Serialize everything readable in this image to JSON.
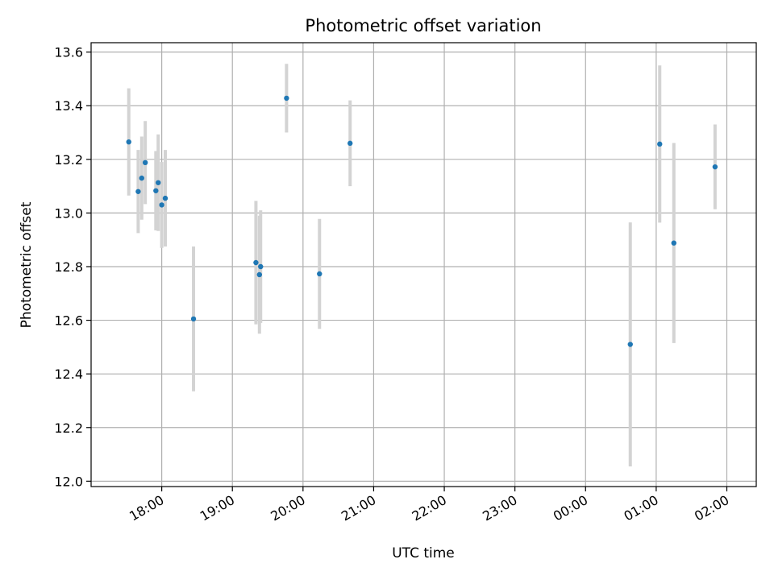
{
  "chart_data": {
    "type": "scatter",
    "title": "Photometric offset variation",
    "xlabel": "UTC time",
    "ylabel": "Photometric offset",
    "x_is_time": true,
    "xlim": [
      "17:00",
      "02:25"
    ],
    "ylim": [
      11.98,
      13.635
    ],
    "grid": true,
    "xticks": [
      "18:00",
      "19:00",
      "20:00",
      "21:00",
      "22:00",
      "23:00",
      "00:00",
      "01:00",
      "02:00"
    ],
    "yticks": [
      "12.0",
      "12.2",
      "12.4",
      "12.6",
      "12.8",
      "13.0",
      "13.2",
      "13.4",
      "13.6"
    ],
    "colors": {
      "point": "#1f77b4",
      "errorbar": "#d3d3d3",
      "grid": "#b0b0b0"
    },
    "points": [
      {
        "x": "17:32",
        "y": 13.265,
        "err": 0.2
      },
      {
        "x": "17:40",
        "y": 13.08,
        "err": 0.155
      },
      {
        "x": "17:43",
        "y": 13.13,
        "err": 0.155
      },
      {
        "x": "17:46",
        "y": 13.188,
        "err": 0.155
      },
      {
        "x": "17:55",
        "y": 13.083,
        "err": 0.148
      },
      {
        "x": "17:57",
        "y": 13.113,
        "err": 0.18
      },
      {
        "x": "18:00",
        "y": 13.03,
        "err": 0.16
      },
      {
        "x": "18:03",
        "y": 13.055,
        "err": 0.18
      },
      {
        "x": "18:27",
        "y": 12.605,
        "err": 0.27
      },
      {
        "x": "19:20",
        "y": 12.815,
        "err": 0.23
      },
      {
        "x": "19:23",
        "y": 12.77,
        "err": 0.22
      },
      {
        "x": "19:24",
        "y": 12.8,
        "err": 0.21
      },
      {
        "x": "19:46",
        "y": 13.428,
        "err": 0.128
      },
      {
        "x": "20:14",
        "y": 12.773,
        "err": 0.205
      },
      {
        "x": "20:40",
        "y": 13.26,
        "err": 0.16
      },
      {
        "x": "00:38",
        "y": 12.51,
        "err": 0.455
      },
      {
        "x": "01:03",
        "y": 13.257,
        "err": 0.293
      },
      {
        "x": "01:15",
        "y": 12.888,
        "err": 0.373
      },
      {
        "x": "01:50",
        "y": 13.172,
        "err": 0.158
      }
    ]
  }
}
